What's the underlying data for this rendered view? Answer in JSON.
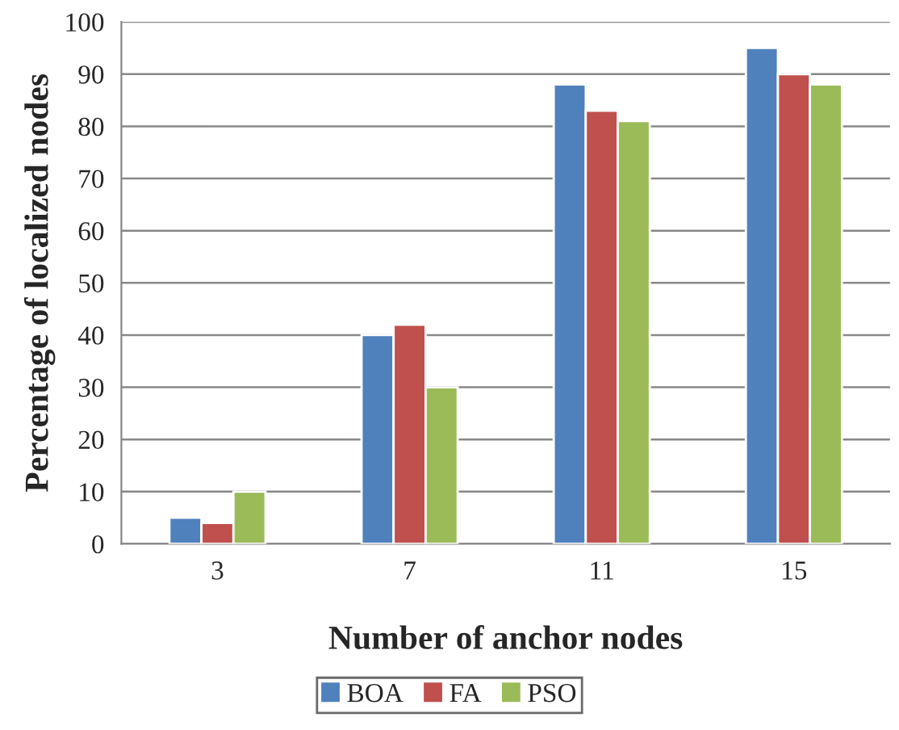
{
  "chart_data": {
    "type": "bar",
    "xlabel": "Number of anchor nodes",
    "ylabel": "Percentage of localized nodes",
    "categories": [
      "3",
      "7",
      "11",
      "15"
    ],
    "series": [
      {
        "name": "BOA",
        "color": "#4f81bd",
        "values": [
          5,
          40,
          88,
          95
        ]
      },
      {
        "name": "FA",
        "color": "#c0504d",
        "values": [
          4,
          42,
          83,
          90
        ]
      },
      {
        "name": "PSO",
        "color": "#9bbb59",
        "values": [
          10,
          30,
          81,
          88
        ]
      }
    ],
    "ylim": [
      0,
      100
    ],
    "yticks": [
      0,
      10,
      20,
      30,
      40,
      50,
      60,
      70,
      80,
      90,
      100
    ],
    "grid": "y",
    "legend": "bottom"
  }
}
